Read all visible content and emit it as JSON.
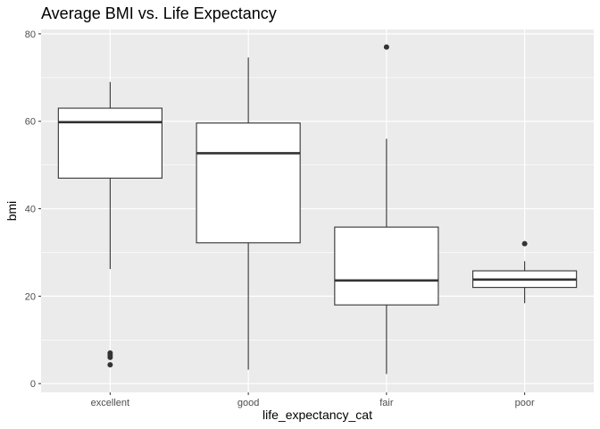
{
  "chart_data": {
    "type": "boxplot",
    "title": "Average BMI vs. Life Expectancy",
    "xlabel": "life_expectancy_cat",
    "ylabel": "bmi",
    "categories": [
      "excellent",
      "good",
      "fair",
      "poor"
    ],
    "ylim": [
      -2,
      81
    ],
    "yticks": [
      0,
      20,
      40,
      60,
      80
    ],
    "grid": true,
    "boxes": [
      {
        "category": "excellent",
        "lower_whisker": 26.2,
        "q1": 47.0,
        "median": 59.8,
        "q3": 63.0,
        "upper_whisker": 69.0,
        "outliers": [
          7.0,
          6.5,
          6.0,
          4.3
        ]
      },
      {
        "category": "good",
        "lower_whisker": 3.2,
        "q1": 32.2,
        "median": 52.7,
        "q3": 59.6,
        "upper_whisker": 74.6,
        "outliers": []
      },
      {
        "category": "fair",
        "lower_whisker": 2.2,
        "q1": 18.0,
        "median": 23.6,
        "q3": 35.8,
        "upper_whisker": 56.0,
        "outliers": [
          77.0
        ]
      },
      {
        "category": "poor",
        "lower_whisker": 18.4,
        "q1": 22.0,
        "median": 23.8,
        "q3": 25.8,
        "upper_whisker": 28.0,
        "outliers": [
          32.0
        ]
      }
    ],
    "colors": {
      "panel_background": "#ebebeb",
      "grid": "#ffffff",
      "box_fill": "#ffffff",
      "box_stroke": "#333333",
      "tick_text": "#4d4d4d"
    }
  }
}
